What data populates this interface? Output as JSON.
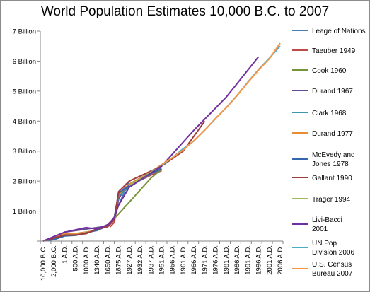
{
  "chart_data": {
    "type": "line",
    "title": "World Population Estimates 10,000 B.C. to 2007",
    "xlabel": "",
    "ylabel": "",
    "ylim": [
      0,
      7000000000
    ],
    "y_ticks": [
      {
        "value": 1000000000,
        "label": "1 Billion"
      },
      {
        "value": 2000000000,
        "label": "2 Billion"
      },
      {
        "value": 3000000000,
        "label": "3 Billion"
      },
      {
        "value": 4000000000,
        "label": "4 Billion"
      },
      {
        "value": 5000000000,
        "label": "5 Billion"
      },
      {
        "value": 6000000000,
        "label": "6 Billion"
      },
      {
        "value": 7000000000,
        "label": "7 Billion"
      }
    ],
    "categories": [
      "10,000 B.C.",
      "2,000 B.C.",
      "1 A.D.",
      "500 A.D.",
      "1000 A.D.",
      "1340 A.D.",
      "1650 A.D.",
      "1875 A.D.",
      "1927 A.D.",
      "1932 A.D.",
      "1937 A.D.",
      "1951 A.D.",
      "1956 A.D.",
      "1961 A.D.",
      "1966 A.D.",
      "1971 A.D.",
      "1976 A.D.",
      "1981 A.D.",
      "1986 A.D.",
      "1991 A.D.",
      "1996 A.D.",
      "2001 A.D.",
      "2006 A.D."
    ],
    "legend_position": "right",
    "grid": false,
    "series": [
      {
        "name": "Leage of Nations",
        "color": "#4a7ebb",
        "points": [
          [
            7,
            1.2
          ],
          [
            8,
            2.0
          ]
        ]
      },
      {
        "name": "Taeuber 1949",
        "color": "#be4b48",
        "points": [
          [
            6.2,
            0.47
          ],
          [
            6.6,
            0.62
          ],
          [
            7,
            1.4
          ],
          [
            7.5,
            1.7
          ],
          [
            8,
            1.85
          ],
          [
            10,
            2.2
          ],
          [
            11,
            2.35
          ]
        ]
      },
      {
        "name": "Cook 1960",
        "color": "#77933c",
        "points": [
          [
            0,
            0.005
          ],
          [
            2,
            0.2
          ],
          [
            4,
            0.27
          ],
          [
            5,
            0.39
          ],
          [
            6,
            0.55
          ],
          [
            6.6,
            0.75
          ],
          [
            8,
            1.3
          ],
          [
            9,
            1.7
          ],
          [
            10,
            2.1
          ],
          [
            11,
            2.4
          ]
        ]
      },
      {
        "name": "Durand 1967",
        "color": "#664b8e",
        "points": [
          [
            0,
            0.005
          ],
          [
            1,
            0.1
          ],
          [
            2,
            0.3
          ],
          [
            5,
            0.45
          ],
          [
            6,
            0.5
          ],
          [
            6.6,
            0.78
          ],
          [
            7,
            1.4
          ],
          [
            7.5,
            1.75
          ],
          [
            8,
            1.9
          ],
          [
            10,
            2.3
          ],
          [
            11,
            2.45
          ]
        ]
      },
      {
        "name": "Clark 1968",
        "color": "#3d96ae",
        "points": [
          [
            0,
            0.005
          ],
          [
            2,
            0.25
          ],
          [
            3,
            0.25
          ],
          [
            4,
            0.3
          ],
          [
            5,
            0.35
          ],
          [
            6,
            0.52
          ],
          [
            6.6,
            0.8
          ],
          [
            7,
            1.5
          ],
          [
            8,
            1.8
          ],
          [
            10,
            2.25
          ],
          [
            11,
            2.5
          ]
        ]
      },
      {
        "name": "Durand 1977",
        "color": "#e88b35",
        "points": [
          [
            0,
            0.005
          ],
          [
            2,
            0.25
          ],
          [
            3,
            0.25
          ],
          [
            4,
            0.3
          ],
          [
            5,
            0.36
          ],
          [
            6,
            0.55
          ],
          [
            6.6,
            0.78
          ],
          [
            7,
            1.55
          ],
          [
            8,
            1.9
          ],
          [
            10,
            2.3
          ],
          [
            11,
            2.55
          ]
        ]
      },
      {
        "name": "McEvedy and Jones 1978",
        "color": "#3366aa",
        "points": [
          [
            0,
            0.005
          ],
          [
            1,
            0.05
          ],
          [
            2,
            0.17
          ],
          [
            3,
            0.19
          ],
          [
            4,
            0.27
          ],
          [
            5,
            0.36
          ],
          [
            6,
            0.5
          ],
          [
            6.6,
            0.77
          ],
          [
            7,
            1.6
          ],
          [
            8,
            1.85
          ],
          [
            10,
            2.25
          ],
          [
            11,
            2.4
          ]
        ]
      },
      {
        "name": "Gallant 1990",
        "color": "#a23b3b",
        "points": [
          [
            0,
            0.005
          ],
          [
            2,
            0.2
          ],
          [
            3,
            0.2
          ],
          [
            4,
            0.25
          ],
          [
            5,
            0.4
          ],
          [
            6,
            0.48
          ],
          [
            6.6,
            0.7
          ],
          [
            7,
            1.65
          ],
          [
            8,
            2.0
          ],
          [
            11,
            2.5
          ],
          [
            13,
            3.0
          ],
          [
            15,
            4.0
          ]
        ]
      },
      {
        "name": "Trager 1994",
        "color": "#9bbb59",
        "points": [
          [
            8,
            1.85
          ],
          [
            10,
            2.3
          ],
          [
            11,
            2.5
          ]
        ]
      },
      {
        "name": "Livi-Bacci 2001",
        "color": "#7030a0",
        "points": [
          [
            0,
            0.005
          ],
          [
            1,
            0.15
          ],
          [
            2,
            0.3
          ],
          [
            4,
            0.45
          ],
          [
            5,
            0.4
          ],
          [
            6,
            0.55
          ],
          [
            6.6,
            0.78
          ],
          [
            7,
            1.2
          ],
          [
            8,
            1.8
          ],
          [
            11,
            2.5
          ],
          [
            14,
            3.7
          ],
          [
            17,
            4.8
          ],
          [
            20,
            6.15
          ]
        ]
      },
      {
        "name": "UN Pop Division 2006",
        "color": "#4bacc6",
        "points": [
          [
            11,
            2.52
          ],
          [
            12,
            2.78
          ],
          [
            13,
            3.08
          ],
          [
            14,
            3.34
          ],
          [
            15,
            3.7
          ],
          [
            16,
            4.08
          ],
          [
            17,
            4.45
          ],
          [
            18,
            4.85
          ],
          [
            19,
            5.3
          ],
          [
            20,
            5.72
          ],
          [
            21,
            6.1
          ],
          [
            22,
            6.5
          ]
        ]
      },
      {
        "name": "U.S. Census Bureau 2007",
        "color": "#f79646",
        "points": [
          [
            11,
            2.55
          ],
          [
            12,
            2.78
          ],
          [
            13,
            3.04
          ],
          [
            14,
            3.35
          ],
          [
            15,
            3.7
          ],
          [
            16,
            4.09
          ],
          [
            17,
            4.45
          ],
          [
            18,
            4.86
          ],
          [
            19,
            5.29
          ],
          [
            20,
            5.7
          ],
          [
            21,
            6.08
          ],
          [
            22,
            6.6
          ]
        ]
      }
    ]
  }
}
